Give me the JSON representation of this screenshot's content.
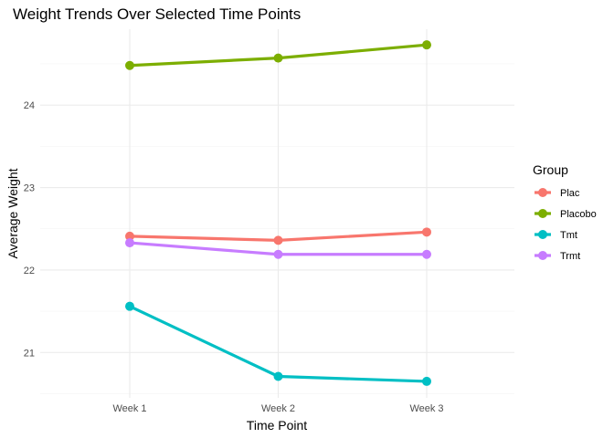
{
  "chart_data": {
    "type": "line",
    "title": "Weight Trends Over Selected Time Points",
    "xlabel": "Time Point",
    "ylabel": "Average Weight",
    "categories": [
      "Week 1",
      "Week 2",
      "Week 3"
    ],
    "y_ticks": [
      21,
      22,
      23,
      24
    ],
    "ylim": [
      20.45,
      24.92
    ],
    "grid": true,
    "legend": {
      "title": "Group",
      "position": "right"
    },
    "series": [
      {
        "name": "Plac",
        "color": "#F8766D",
        "values": [
          22.41,
          22.36,
          22.46
        ]
      },
      {
        "name": "Placobo",
        "color": "#7CAE00",
        "values": [
          24.48,
          24.57,
          24.73
        ]
      },
      {
        "name": "Tmt",
        "color": "#00BFC4",
        "values": [
          21.56,
          20.71,
          20.65
        ]
      },
      {
        "name": "Trmt",
        "color": "#C77CFF",
        "values": [
          22.33,
          22.19,
          22.19
        ]
      }
    ]
  }
}
